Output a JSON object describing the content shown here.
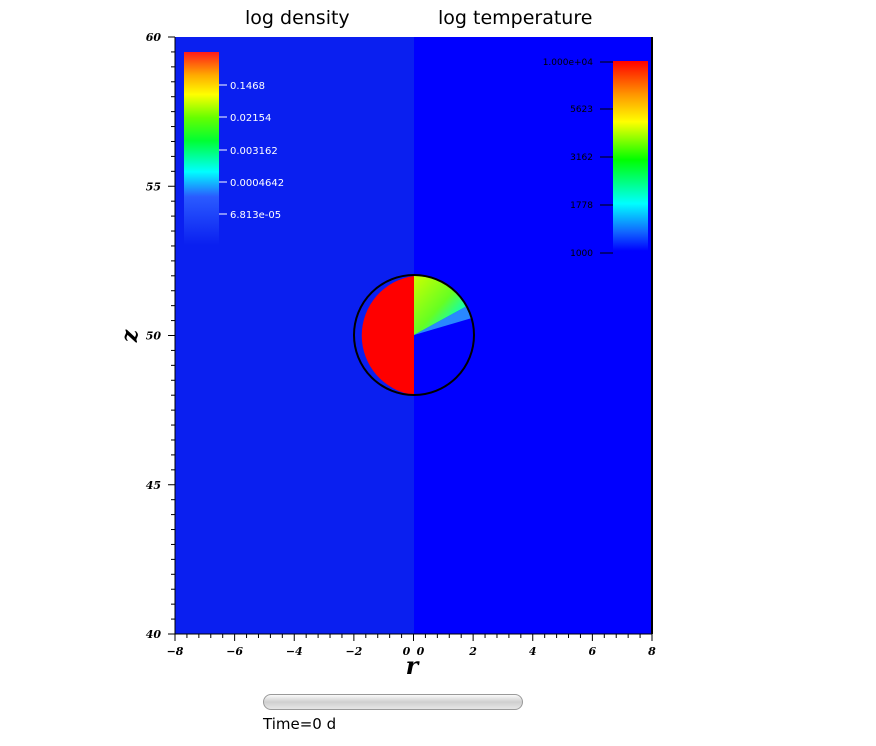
{
  "chart_data": {
    "type": "heatmap",
    "titles": {
      "left": "log density",
      "right": "log temperature"
    },
    "xlabel": "r",
    "ylabel": "z",
    "xlim": [
      -8,
      8
    ],
    "ylim": [
      40,
      60
    ],
    "xticks": [
      "−8",
      "−6",
      "−4",
      "−2",
      "0",
      "0",
      "2",
      "4",
      "6",
      "8"
    ],
    "yticks": [
      "60",
      "55",
      "50",
      "45",
      "40"
    ],
    "object": {
      "shape": "circle",
      "center_r": 0,
      "center_z": 50,
      "radius": 2
    },
    "density": {
      "colorbar_labels": [
        "0.1468",
        "0.02154",
        "0.003162",
        "0.0004642",
        "6.813e-05"
      ],
      "background_color": "#0a1ff0",
      "object_color": "#ff0000"
    },
    "temperature": {
      "colorbar_labels": [
        "1.000e+04",
        "5623",
        "3162",
        "1778",
        "1000"
      ],
      "background_color": "#0000ff",
      "object_top_color": "#b4ff1e"
    },
    "time_label": "Time=0 d"
  }
}
